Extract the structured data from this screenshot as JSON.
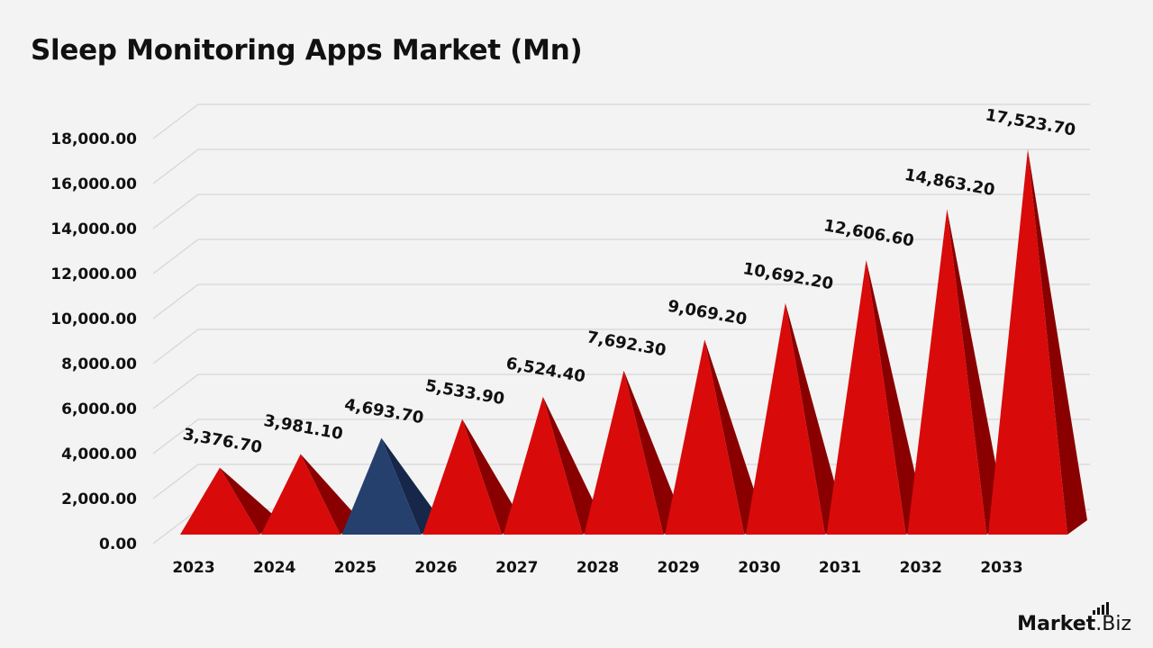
{
  "title": "Sleep Monitoring Apps Market (Mn)",
  "brand": {
    "name_bold": "Market",
    "name_rest": ".Biz"
  },
  "colors": {
    "primary": "#d90a0a",
    "primary_dark": "#8a0000",
    "highlight": "#26406e",
    "highlight_dark": "#16274a",
    "grid": "#d6d6d6",
    "text": "#111111"
  },
  "chart_data": {
    "type": "bar",
    "bar_shape": "3d-pyramid",
    "title": "Sleep Monitoring Apps Market (Mn)",
    "xlabel": "",
    "ylabel": "",
    "categories": [
      "2023",
      "2024",
      "2025",
      "2026",
      "2027",
      "2028",
      "2029",
      "2030",
      "2031",
      "2032",
      "2033"
    ],
    "values": [
      3376.7,
      3981.1,
      4693.7,
      5533.9,
      6524.4,
      7692.3,
      9069.2,
      10692.2,
      12606.6,
      14863.2,
      17523.7
    ],
    "value_labels": [
      "3,376.70",
      "3,981.10",
      "4,693.70",
      "5,533.90",
      "6,524.40",
      "7,692.30",
      "9,069.20",
      "10,692.20",
      "12,606.60",
      "14,863.20",
      "17,523.70"
    ],
    "highlight_category": "2025",
    "ylim": [
      0,
      18000
    ],
    "yticks": [
      0,
      2000,
      4000,
      6000,
      8000,
      10000,
      12000,
      14000,
      16000,
      18000
    ],
    "ytick_labels": [
      "0.00",
      "2,000.00",
      "4,000.00",
      "6,000.00",
      "8,000.00",
      "10,000.00",
      "12,000.00",
      "14,000.00",
      "16,000.00",
      "18,000.00"
    ],
    "grid": true,
    "legend": "none"
  }
}
